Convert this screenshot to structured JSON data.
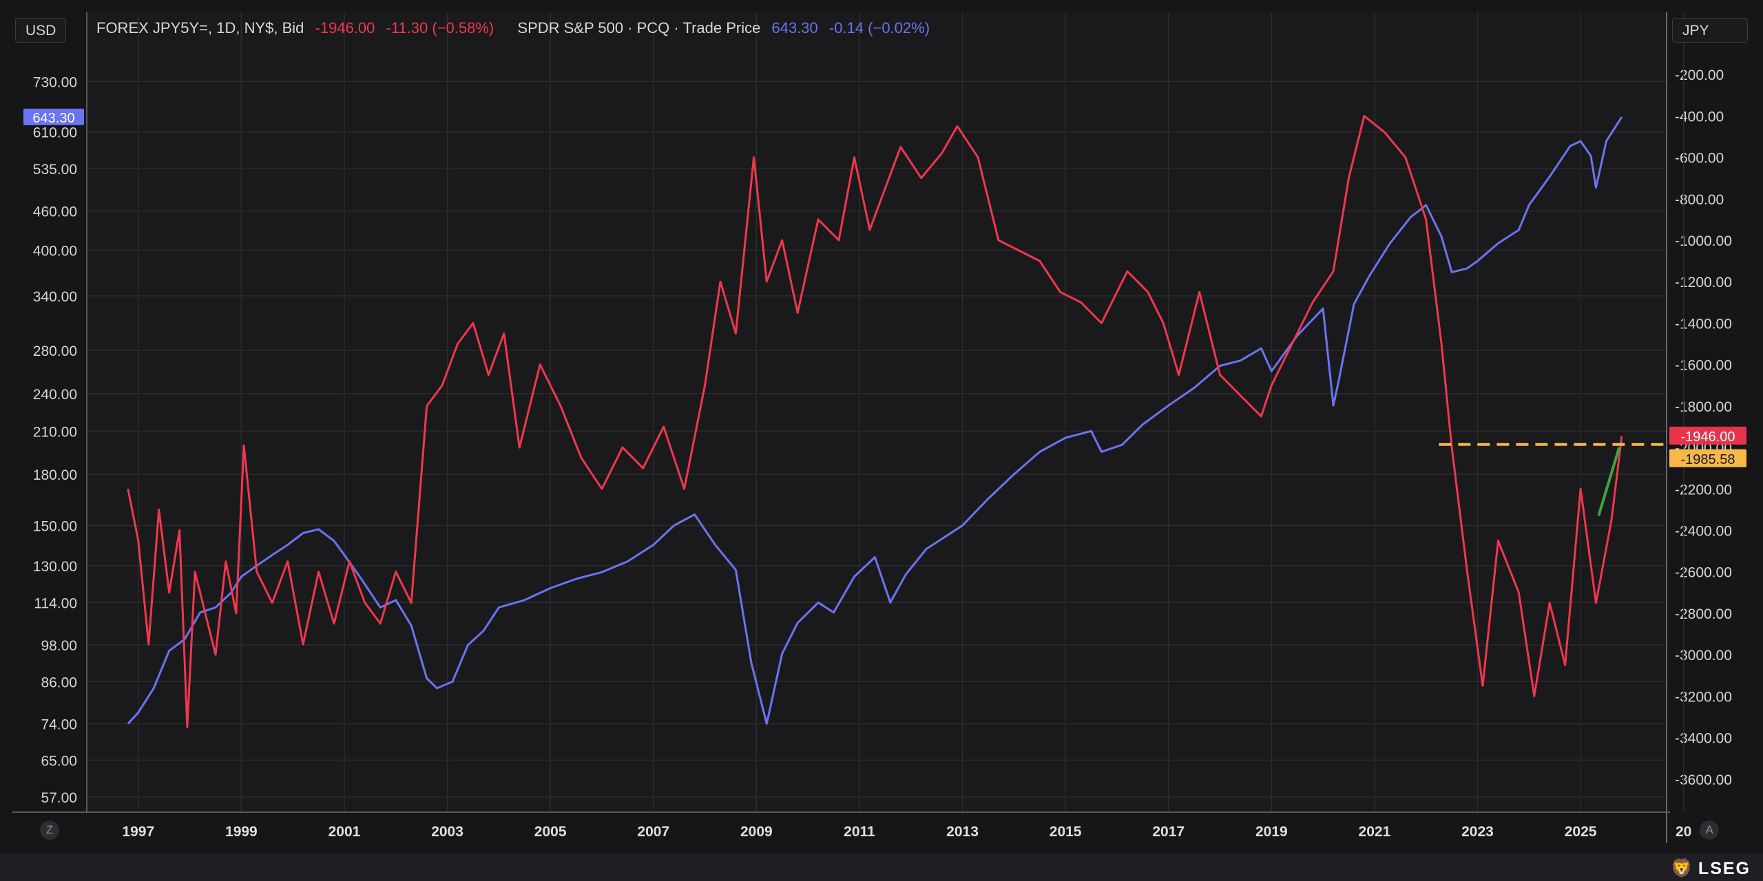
{
  "header": {
    "left_unit": "USD",
    "right_unit": "JPY"
  },
  "legend": {
    "series1": {
      "name": "FOREX JPY5Y=, 1D, NY$, Bid",
      "price": "-1946.00",
      "change": "-11.30 (−0.58%)",
      "color": "#f0374d"
    },
    "series2": {
      "name": "SPDR S&P 500 · PCQ · Trade Price",
      "price": "643.30",
      "change": "-0.14 (−0.02%)",
      "color": "#6a74f2"
    }
  },
  "controls": {
    "left_button": "Z",
    "right_button": "A"
  },
  "footer": {
    "logo_text": "LSEG"
  },
  "chart_data": {
    "type": "line",
    "x_ticks": [
      "1997",
      "1999",
      "2001",
      "2003",
      "2005",
      "2007",
      "2009",
      "2011",
      "2013",
      "2015",
      "2017",
      "2019",
      "2021",
      "2023",
      "2025",
      "20"
    ],
    "left_axis": {
      "label": "USD",
      "scale": "log",
      "ticks": [
        "730.00",
        "610.00",
        "535.00",
        "460.00",
        "400.00",
        "340.00",
        "280.00",
        "240.00",
        "210.00",
        "180.00",
        "150.00",
        "130.00",
        "114.00",
        "98.00",
        "86.00",
        "74.00",
        "65.00",
        "57.00"
      ],
      "tick_values": [
        730,
        610,
        535,
        460,
        400,
        340,
        280,
        240,
        210,
        180,
        150,
        130,
        114,
        98,
        86,
        74,
        65,
        57
      ],
      "range": [
        54,
        830
      ]
    },
    "right_axis": {
      "label": "JPY",
      "ticks": [
        "-200.00",
        "-400.00",
        "-600.00",
        "-800.00",
        "-1000.00",
        "-1200.00",
        "-1400.00",
        "-1600.00",
        "-1800.00",
        "-2000.00",
        "-2200.00",
        "-2400.00",
        "-2600.00",
        "-2800.00",
        "-3000.00",
        "-3200.00",
        "-3400.00",
        "-3600.00"
      ],
      "tick_values": [
        -200,
        -400,
        -600,
        -800,
        -1000,
        -1200,
        -1400,
        -1600,
        -1800,
        -2000,
        -2200,
        -2400,
        -2600,
        -2800,
        -3000,
        -3200,
        -3400,
        -3600
      ],
      "range": [
        -3760,
        -60
      ]
    },
    "price_labels": {
      "left_last": "643.30",
      "right_last": "-1946.00",
      "right_marker": "-1985.58"
    },
    "reference_line": {
      "value": -1985.58,
      "from_date": 2022.25,
      "color": "#f6b84a"
    },
    "trend_segment": {
      "x": [
        2025.35,
        2025.75
      ],
      "y": [
        -2330,
        -2000
      ],
      "color": "#3ea43c"
    },
    "grid": true,
    "series": [
      {
        "name": "SPDR S&P 500",
        "axis": "left",
        "color": "#6a74f2",
        "x": [
          1996.8,
          1997.0,
          1997.3,
          1997.6,
          1997.9,
          1998.2,
          1998.5,
          1998.8,
          1999.0,
          1999.3,
          1999.6,
          1999.9,
          2000.2,
          2000.5,
          2000.8,
          2001.0,
          2001.3,
          2001.7,
          2002.0,
          2002.3,
          2002.6,
          2002.8,
          2003.1,
          2003.4,
          2003.7,
          2004.0,
          2004.5,
          2005.0,
          2005.5,
          2006.0,
          2006.5,
          2007.0,
          2007.4,
          2007.8,
          2008.2,
          2008.6,
          2008.9,
          2009.2,
          2009.5,
          2009.8,
          2010.2,
          2010.5,
          2010.9,
          2011.3,
          2011.6,
          2011.9,
          2012.3,
          2012.6,
          2013.0,
          2013.5,
          2014.0,
          2014.5,
          2015.0,
          2015.5,
          2015.7,
          2016.1,
          2016.5,
          2017.0,
          2017.5,
          2018.0,
          2018.4,
          2018.8,
          2019.0,
          2019.5,
          2020.0,
          2020.2,
          2020.3,
          2020.6,
          2020.9,
          2021.3,
          2021.7,
          2022.0,
          2022.3,
          2022.5,
          2022.8,
          2023.0,
          2023.4,
          2023.8,
          2024.0,
          2024.4,
          2024.8,
          2025.0,
          2025.2,
          2025.3,
          2025.5,
          2025.8
        ],
        "y": [
          74,
          77,
          84,
          96,
          100,
          110,
          112,
          118,
          125,
          130,
          135,
          140,
          146,
          148,
          142,
          135,
          125,
          112,
          115,
          105,
          87,
          84,
          86,
          98,
          103,
          112,
          115,
          120,
          124,
          127,
          132,
          140,
          150,
          156,
          140,
          128,
          92,
          74,
          95,
          106,
          114,
          110,
          125,
          134,
          114,
          126,
          138,
          143,
          150,
          165,
          180,
          195,
          205,
          210,
          195,
          200,
          215,
          230,
          245,
          265,
          270,
          282,
          260,
          295,
          325,
          230,
          250,
          330,
          365,
          410,
          450,
          470,
          420,
          370,
          375,
          385,
          410,
          430,
          470,
          520,
          580,
          590,
          560,
          500,
          590,
          643.3
        ]
      },
      {
        "name": "FOREX JPY5Y=",
        "axis": "right",
        "color": "#f0374d",
        "x": [
          1996.8,
          1997.0,
          1997.2,
          1997.4,
          1997.6,
          1997.8,
          1997.95,
          1998.1,
          1998.3,
          1998.5,
          1998.7,
          1998.9,
          1999.05,
          1999.3,
          1999.6,
          1999.9,
          2000.2,
          2000.5,
          2000.8,
          2001.1,
          2001.4,
          2001.7,
          2002.0,
          2002.3,
          2002.6,
          2002.9,
          2003.2,
          2003.5,
          2003.8,
          2004.1,
          2004.4,
          2004.8,
          2005.2,
          2005.6,
          2006.0,
          2006.4,
          2006.8,
          2007.2,
          2007.6,
          2008.0,
          2008.3,
          2008.6,
          2008.95,
          2009.2,
          2009.5,
          2009.8,
          2010.2,
          2010.6,
          2010.9,
          2011.2,
          2011.5,
          2011.8,
          2012.2,
          2012.6,
          2012.9,
          2013.3,
          2013.7,
          2014.1,
          2014.5,
          2014.9,
          2015.3,
          2015.7,
          2016.2,
          2016.6,
          2016.9,
          2017.2,
          2017.6,
          2018.0,
          2018.4,
          2018.8,
          2019.0,
          2019.4,
          2019.8,
          2020.2,
          2020.5,
          2020.8,
          2021.2,
          2021.6,
          2022.0,
          2022.3,
          2022.5,
          2022.8,
          2023.1,
          2023.4,
          2023.8,
          2024.1,
          2024.4,
          2024.7,
          2025.0,
          2025.3,
          2025.6,
          2025.8
        ],
        "y": [
          -2200,
          -2450,
          -2950,
          -2300,
          -2700,
          -2400,
          -3350,
          -2600,
          -2800,
          -3000,
          -2550,
          -2800,
          -1990,
          -2600,
          -2750,
          -2550,
          -2950,
          -2600,
          -2850,
          -2550,
          -2750,
          -2850,
          -2600,
          -2750,
          -1800,
          -1700,
          -1500,
          -1400,
          -1650,
          -1450,
          -2000,
          -1600,
          -1800,
          -2050,
          -2200,
          -2000,
          -2100,
          -1900,
          -2200,
          -1700,
          -1200,
          -1450,
          -600,
          -1200,
          -1000,
          -1350,
          -900,
          -1000,
          -600,
          -950,
          -750,
          -550,
          -700,
          -580,
          -450,
          -600,
          -1000,
          -1050,
          -1100,
          -1250,
          -1300,
          -1400,
          -1150,
          -1250,
          -1400,
          -1650,
          -1250,
          -1650,
          -1750,
          -1850,
          -1700,
          -1500,
          -1300,
          -1150,
          -700,
          -400,
          -480,
          -600,
          -900,
          -1500,
          -2000,
          -2600,
          -3150,
          -2450,
          -2700,
          -3200,
          -2750,
          -3050,
          -2200,
          -2750,
          -2350,
          -1946
        ]
      }
    ]
  }
}
